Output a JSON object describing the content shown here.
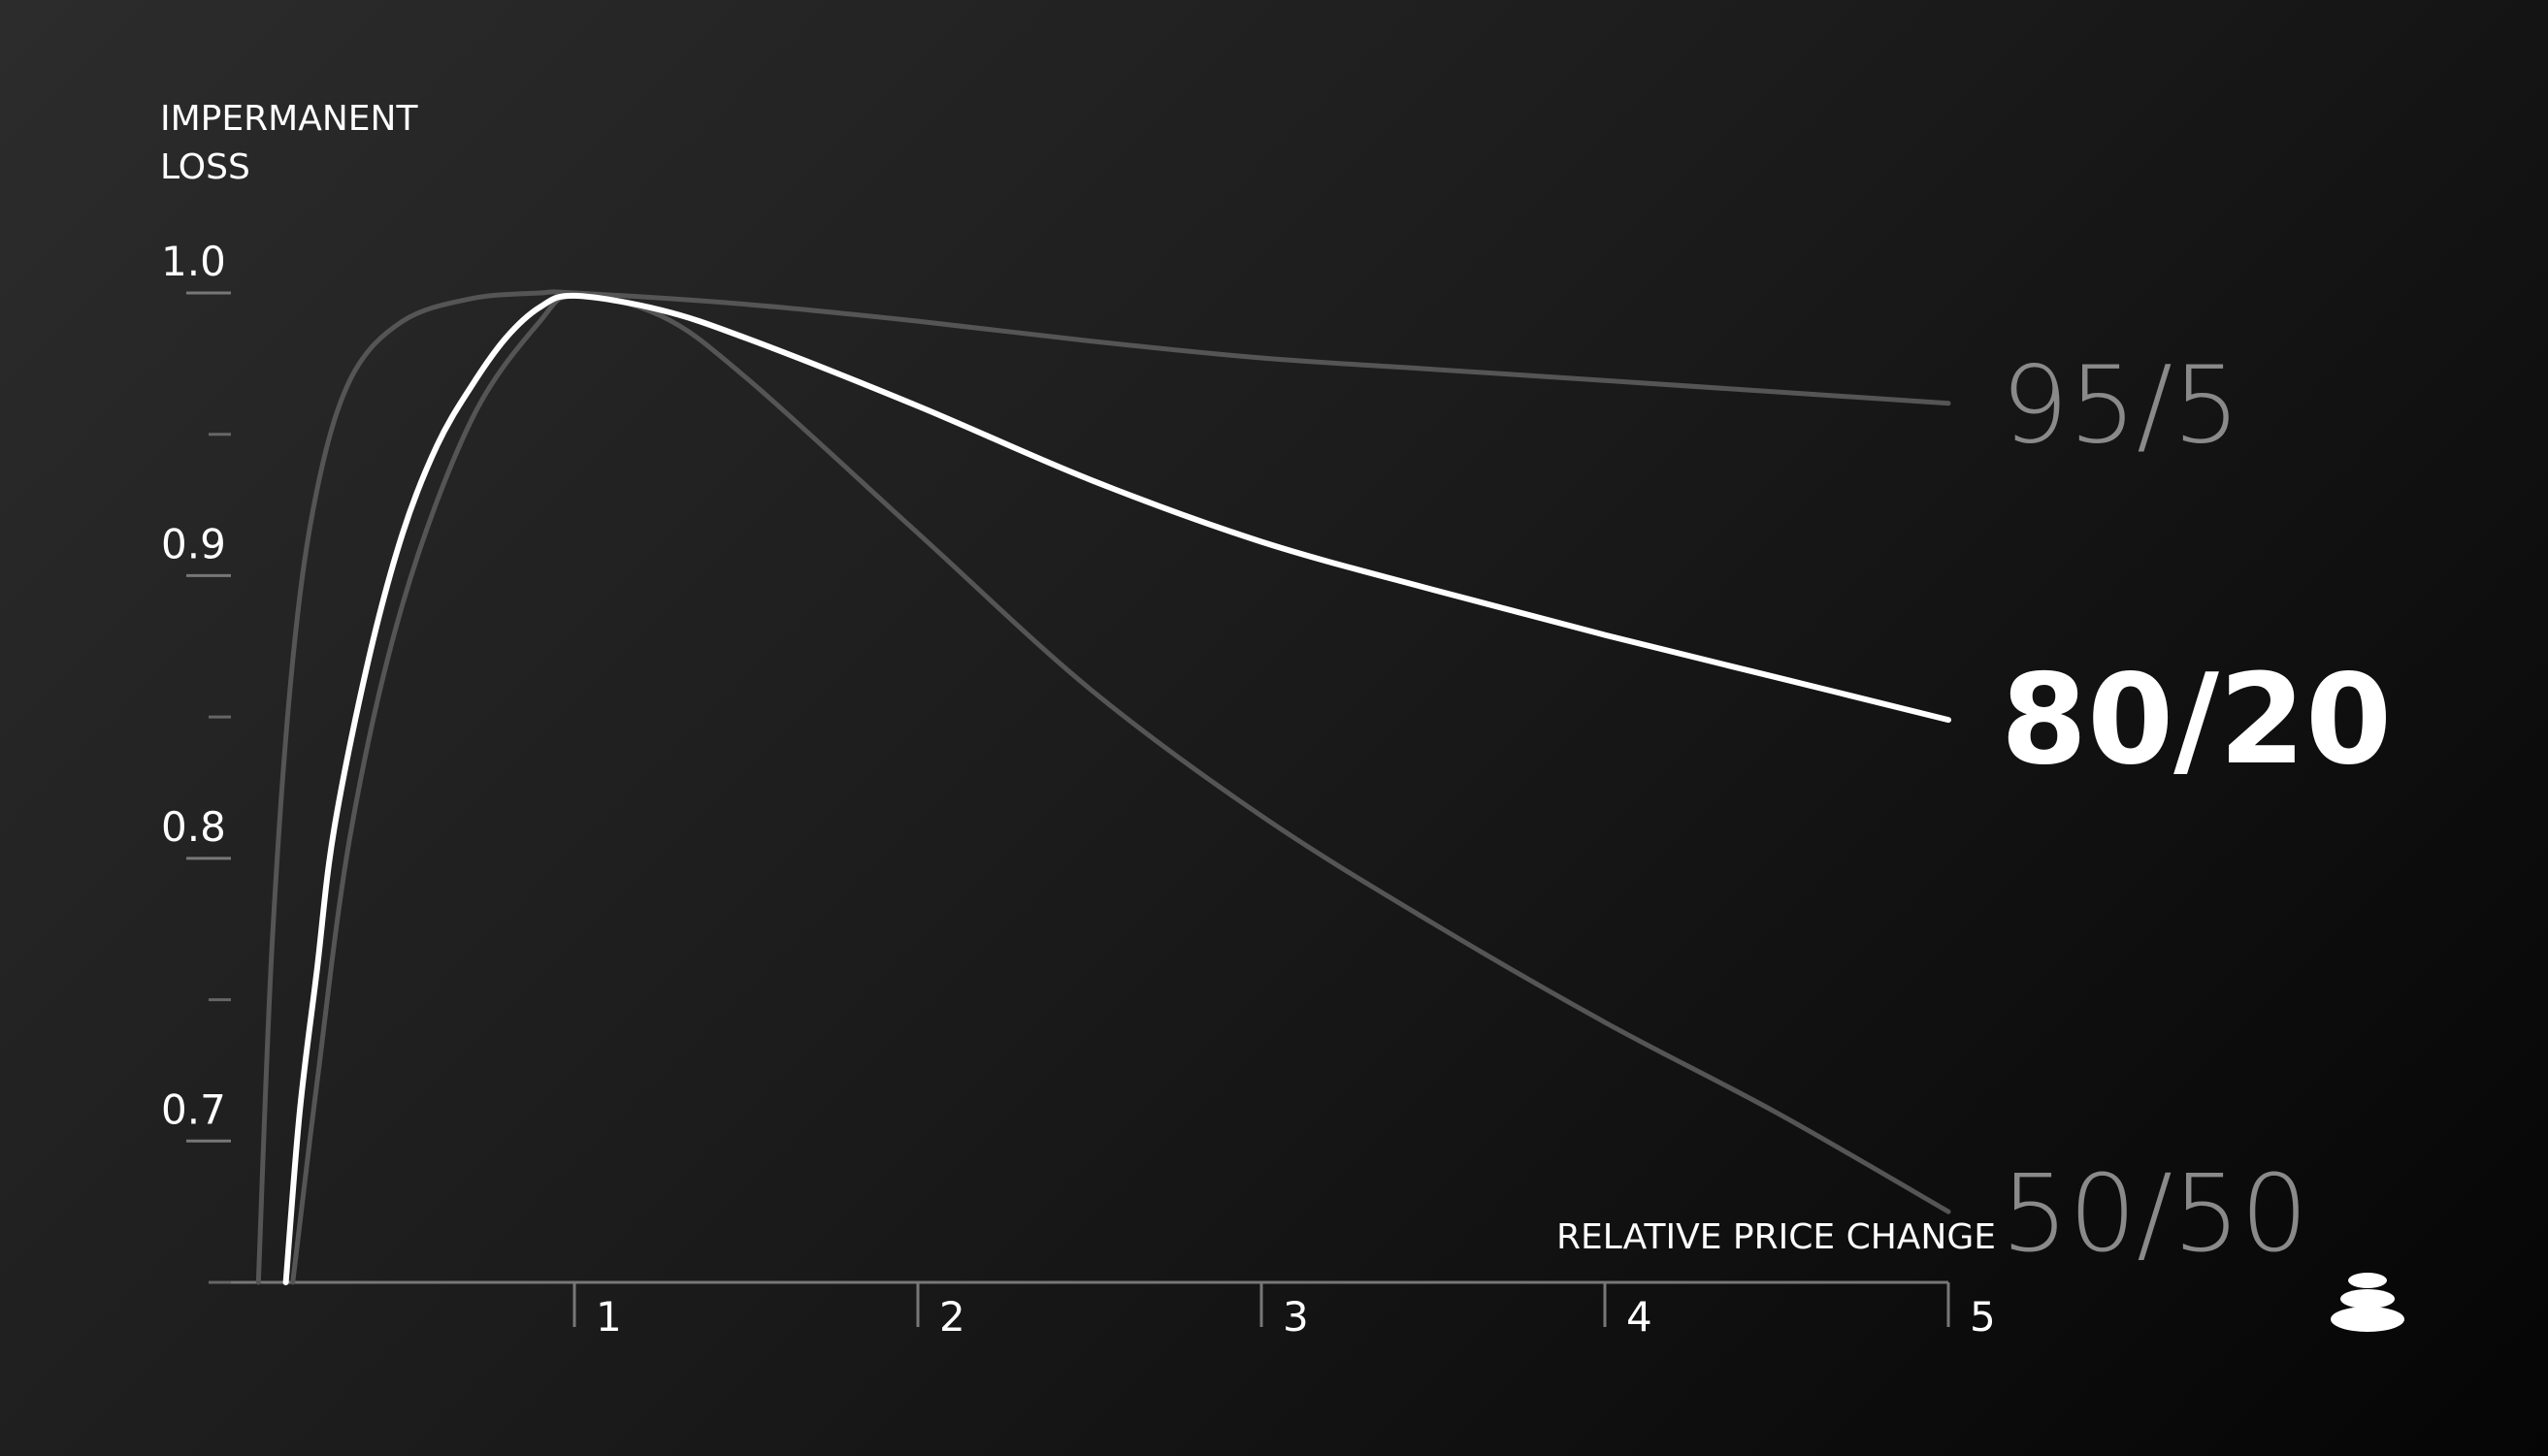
{
  "chart_data": {
    "type": "line",
    "ylabel": [
      "IMPERMANENT",
      "LOSS"
    ],
    "xlabel": "RELATIVE PRICE CHANGE",
    "xlim": [
      0,
      5
    ],
    "ylim": [
      0.65,
      1.0
    ],
    "yticks_labeled": [
      {
        "value": 1.0,
        "label": "1.0"
      },
      {
        "value": 0.9,
        "label": "0.9"
      },
      {
        "value": 0.8,
        "label": "0.8"
      },
      {
        "value": 0.7,
        "label": "0.7"
      }
    ],
    "yticks_minor": [
      0.95,
      0.85,
      0.75,
      0.65
    ],
    "xticks": [
      {
        "value": 1,
        "label": "1"
      },
      {
        "value": 2,
        "label": "2"
      },
      {
        "value": 3,
        "label": "3"
      },
      {
        "value": 4,
        "label": "4"
      },
      {
        "value": 5,
        "label": "5"
      }
    ],
    "series": [
      {
        "name": "95/5",
        "emphasis": "dim",
        "color": "#555555",
        "x": [
          0.08,
          0.12,
          0.18,
          0.25,
          0.35,
          0.5,
          0.7,
          0.9,
          1.0,
          1.5,
          2,
          2.5,
          3,
          3.5,
          4,
          4.5,
          5
        ],
        "y": [
          0.65,
          0.77,
          0.87,
          0.93,
          0.97,
          0.99,
          0.998,
          1.0,
          1.0,
          0.996,
          0.99,
          0.983,
          0.977,
          0.973,
          0.969,
          0.965,
          0.961
        ]
      },
      {
        "name": "80/20",
        "emphasis": "main",
        "color": "#ffffff",
        "x": [
          0.16,
          0.2,
          0.25,
          0.3,
          0.4,
          0.5,
          0.6,
          0.7,
          0.8,
          0.9,
          1.0,
          1.25,
          1.5,
          2,
          2.5,
          3,
          3.5,
          4,
          4.5,
          5
        ],
        "y": [
          0.65,
          0.71,
          0.76,
          0.81,
          0.87,
          0.915,
          0.946,
          0.967,
          0.984,
          0.995,
          0.999,
          0.994,
          0.984,
          0.96,
          0.934,
          0.912,
          0.895,
          0.879,
          0.864,
          0.849
        ]
      },
      {
        "name": "50/50",
        "emphasis": "dim",
        "color": "#555555",
        "x": [
          0.18,
          0.25,
          0.35,
          0.5,
          0.7,
          0.9,
          1.0,
          1.25,
          1.5,
          2,
          2.5,
          3,
          3.5,
          4,
          4.5,
          5
        ],
        "y": [
          0.65,
          0.72,
          0.81,
          0.89,
          0.955,
          0.99,
          0.999,
          0.992,
          0.97,
          0.915,
          0.86,
          0.815,
          0.777,
          0.742,
          0.71,
          0.675
        ]
      }
    ],
    "grid": false,
    "legend": "inline-right"
  },
  "logo": {
    "name": "stacked-stones-logo",
    "color": "#ffffff"
  }
}
